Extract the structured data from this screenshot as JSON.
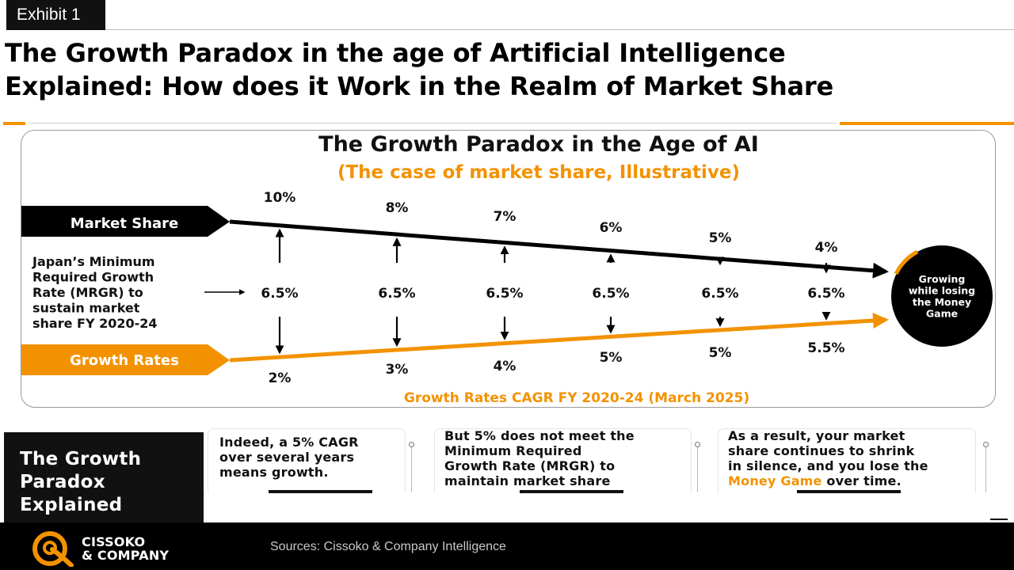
{
  "exhibit_label": "Exhibit 1",
  "headline_line1": "The Growth Paradox in the age of Artificial Intelligence",
  "headline_line2": "Explained: How does it Work in the Realm of Market Share",
  "colors": {
    "accent": "#f39200",
    "dark": "#000000",
    "white": "#ffffff"
  },
  "chart_data": {
    "type": "line",
    "title": "The Growth Paradox in the Age of AI",
    "subtitle": "(The case of market share, Illustrative)",
    "xlabel": "Growth Rates CAGR FY 2020-24 (March 2025)",
    "series": [
      {
        "name": "Market Share",
        "values": [
          10,
          8,
          7,
          6,
          5,
          4
        ],
        "labels": [
          "10%",
          "8%",
          "7%",
          "6%",
          "5%",
          "4%"
        ]
      },
      {
        "name": "Growth Rates",
        "values": [
          2,
          3,
          4,
          5,
          5,
          5.5
        ],
        "labels": [
          "2%",
          "3%",
          "4%",
          "5%",
          "5%",
          "5.5%"
        ]
      }
    ],
    "mrgr_values": [
      6.5,
      6.5,
      6.5,
      6.5,
      6.5,
      6.5
    ],
    "mrgr_labels": [
      "6.5%",
      "6.5%",
      "6.5%",
      "6.5%",
      "6.5%",
      "6.5%"
    ],
    "mrgr_caption_lines": [
      "Japan’s Minimum",
      "Required Growth",
      "Rate (MRGR) to",
      "sustain market",
      "share  FY 2020-24"
    ],
    "end_badge_lines": [
      "Growing",
      "while losing",
      "the Money",
      "Game"
    ]
  },
  "explained": {
    "title_lines": [
      "The Growth",
      "Paradox",
      "Explained"
    ],
    "cards": [
      {
        "lines": [
          "Indeed, a 5% CAGR",
          "over several years",
          "means growth."
        ]
      },
      {
        "lines": [
          "But 5% does not meet the",
          "Minimum Required",
          "Growth Rate (MRGR) to",
          "maintain market share"
        ]
      },
      {
        "line1": "As a result, your market",
        "line2": "share continues to shrink",
        "line3": "in silence, and you lose the",
        "line4_accent": "Money Game",
        "line4_rest": " over time."
      }
    ]
  },
  "footer": {
    "logo_line1": "CISSOKO",
    "logo_line2": "& COMPANY",
    "sources": "Sources: Cissoko & Company Intelligence"
  }
}
